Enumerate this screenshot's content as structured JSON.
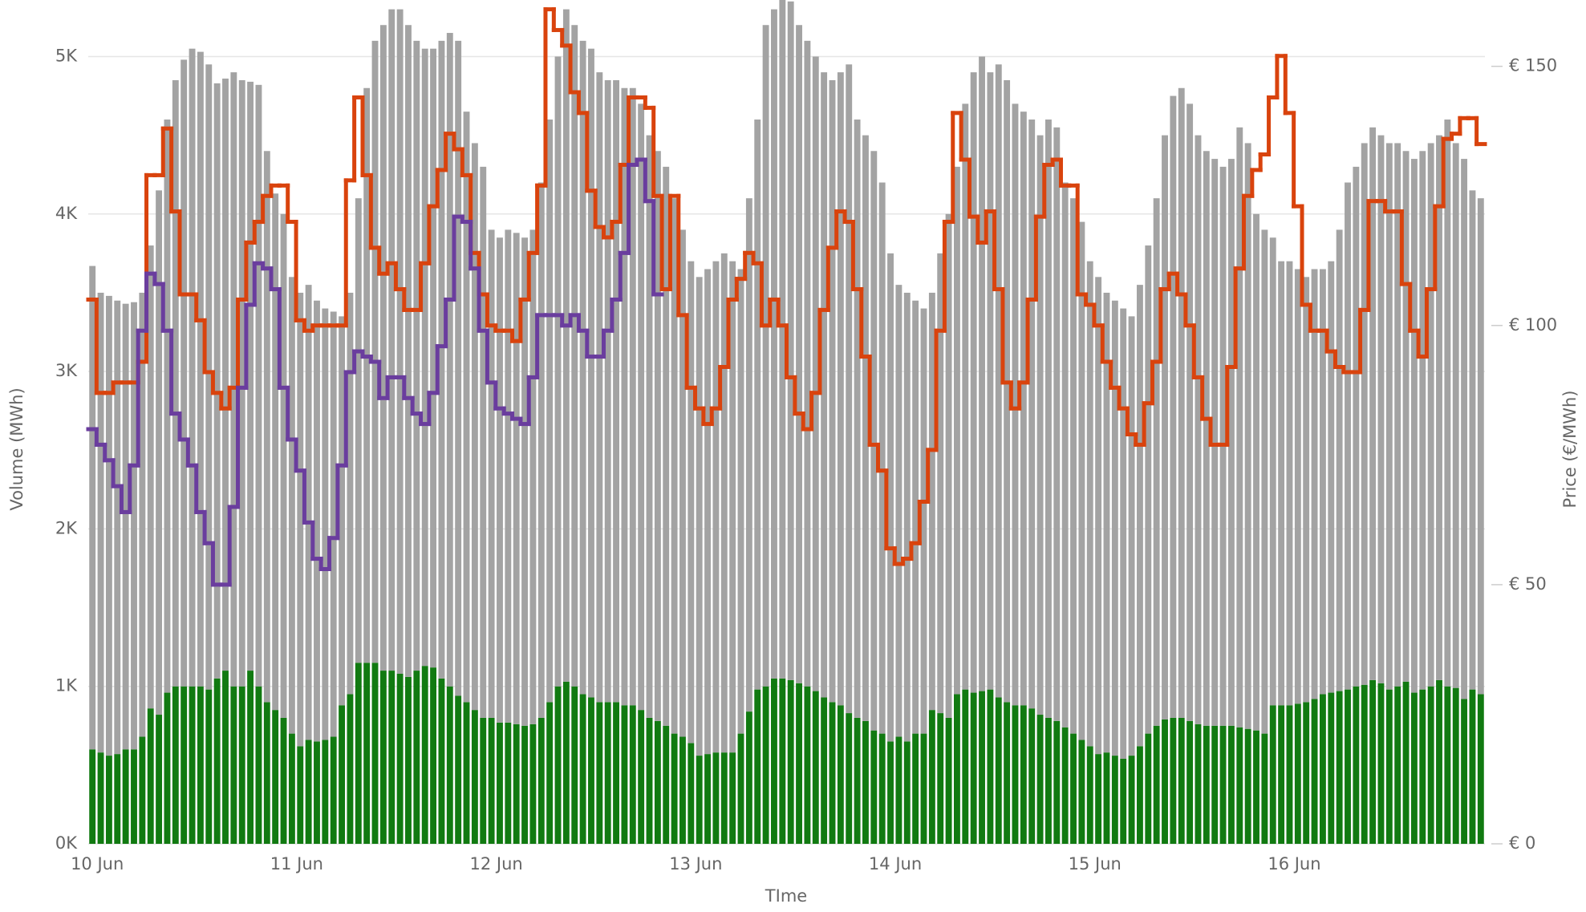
{
  "chart_data": {
    "type": "bar",
    "stacked": true,
    "step": true,
    "x_label": "TIme",
    "y_label": "Volume (MWh)",
    "y2_label": "Price (€/MWh)",
    "categories": [
      "10 Jun",
      null,
      null,
      null,
      null,
      null,
      null,
      null,
      null,
      null,
      null,
      null,
      null,
      null,
      null,
      null,
      null,
      null,
      null,
      null,
      null,
      null,
      null,
      null,
      "11 Jun",
      null,
      null,
      null,
      null,
      null,
      null,
      null,
      null,
      null,
      null,
      null,
      null,
      null,
      null,
      null,
      null,
      null,
      null,
      null,
      null,
      null,
      null,
      null,
      "12 Jun",
      null,
      null,
      null,
      null,
      null,
      null,
      null,
      null,
      null,
      null,
      null,
      null,
      null,
      null,
      null,
      null,
      null,
      null,
      null,
      null,
      null,
      null,
      null,
      "13 Jun",
      null,
      null,
      null,
      null,
      null,
      null,
      null,
      null,
      null,
      null,
      null,
      null,
      null,
      null,
      null,
      null,
      null,
      null,
      null,
      null,
      null,
      null,
      null,
      "14 Jun",
      null,
      null,
      null,
      null,
      null,
      null,
      null,
      null,
      null,
      null,
      null,
      null,
      null,
      null,
      null,
      null,
      null,
      null,
      null,
      null,
      null,
      null,
      null,
      "15 Jun",
      null,
      null,
      null,
      null,
      null,
      null,
      null,
      null,
      null,
      null,
      null,
      null,
      null,
      null,
      null,
      null,
      null,
      null,
      null,
      null,
      null,
      null,
      null,
      "16 Jun",
      null,
      null,
      null,
      null,
      null,
      null,
      null,
      null,
      null,
      null,
      null,
      null,
      null,
      null,
      null,
      null,
      null,
      null,
      null,
      null,
      null,
      null,
      null
    ],
    "ylim": [
      0,
      5300
    ],
    "yticks": [
      {
        "value": 0,
        "label": "0K"
      },
      {
        "value": 1000,
        "label": "1K"
      },
      {
        "value": 2000,
        "label": "2K"
      },
      {
        "value": 3000,
        "label": "3K"
      },
      {
        "value": 4000,
        "label": "4K"
      },
      {
        "value": 5000,
        "label": "5K"
      }
    ],
    "y2lim": [
      0,
      161
    ],
    "y2ticks": [
      {
        "value": 0,
        "label": "€ 0"
      },
      {
        "value": 50,
        "label": "€ 50"
      },
      {
        "value": 100,
        "label": "€ 100"
      },
      {
        "value": 150,
        "label": "€ 150"
      }
    ],
    "grid": true,
    "series": [
      {
        "type": "bar",
        "color": "#117a11",
        "values": [
          600,
          580,
          560,
          570,
          600,
          600,
          680,
          860,
          820,
          960,
          1000,
          1000,
          1000,
          1000,
          980,
          1050,
          1100,
          1000,
          1000,
          1100,
          1000,
          900,
          850,
          800,
          700,
          620,
          660,
          650,
          660,
          680,
          880,
          950,
          1150,
          1150,
          1150,
          1100,
          1100,
          1080,
          1060,
          1100,
          1130,
          1120,
          1050,
          1000,
          940,
          900,
          850,
          800,
          800,
          770,
          770,
          760,
          750,
          760,
          800,
          900,
          1000,
          1030,
          1000,
          950,
          930,
          900,
          900,
          900,
          880,
          880,
          850,
          800,
          780,
          750,
          700,
          680,
          640,
          560,
          570,
          580,
          580,
          580,
          700,
          840,
          980,
          1000,
          1050,
          1050,
          1040,
          1020,
          1000,
          970,
          930,
          900,
          880,
          830,
          800,
          780,
          720,
          700,
          650,
          680,
          650,
          700,
          700,
          850,
          830,
          800,
          950,
          980,
          960,
          970,
          980,
          930,
          900,
          880,
          880,
          860,
          820,
          800,
          780,
          740,
          700,
          660,
          620,
          570,
          580,
          560,
          540,
          560,
          620,
          700,
          750,
          790,
          800,
          800,
          780,
          760,
          750,
          750,
          750,
          750,
          740,
          730,
          720,
          700,
          880,
          880,
          880,
          890,
          900,
          920,
          950,
          960,
          970,
          980,
          1000,
          1010,
          1040,
          1020,
          980,
          1000,
          1030,
          960,
          980,
          1000,
          1040,
          1000,
          990,
          920,
          980,
          950
        ]
      },
      {
        "type": "bar",
        "color": "#a3a3a3",
        "values": [
          3070,
          2920,
          2920,
          2880,
          2830,
          2840,
          2820,
          2940,
          3330,
          3640,
          3850,
          3980,
          4050,
          4030,
          3970,
          3780,
          3760,
          3900,
          3850,
          3740,
          3820,
          3500,
          3280,
          3200,
          2900,
          2880,
          2890,
          2800,
          2740,
          2700,
          2470,
          2550,
          2950,
          3650,
          3950,
          4100,
          4200,
          4220,
          4140,
          4000,
          3920,
          3930,
          4050,
          4150,
          4160,
          3750,
          3600,
          3500,
          3100,
          3080,
          3130,
          3120,
          3100,
          3140,
          3400,
          3700,
          4000,
          4270,
          4200,
          4150,
          4120,
          4000,
          3950,
          3950,
          3920,
          3920,
          3850,
          3700,
          3620,
          3550,
          3400,
          3220,
          3060,
          3040,
          3080,
          3120,
          3170,
          3120,
          2950,
          3260,
          3620,
          4200,
          4250,
          4350,
          4310,
          4180,
          4100,
          4030,
          3970,
          3950,
          4020,
          4120,
          3800,
          3720,
          3680,
          3500,
          3100,
          2870,
          2850,
          2750,
          2700,
          2650,
          2920,
          3200,
          3350,
          3720,
          3940,
          4030,
          3920,
          4020,
          3950,
          3820,
          3770,
          3740,
          3680,
          3800,
          3770,
          3460,
          3400,
          3290,
          3080,
          3030,
          2920,
          2890,
          2860,
          2790,
          2930,
          3100,
          3350,
          3710,
          3950,
          4000,
          3920,
          3740,
          3650,
          3600,
          3550,
          3600,
          3810,
          3720,
          3280,
          3200,
          2970,
          2820,
          2820,
          2760,
          2700,
          2730,
          2700,
          2740,
          2930,
          3220,
          3300,
          3440,
          3510,
          3480,
          3470,
          3450,
          3370,
          3390,
          3420,
          3450,
          3460,
          3600,
          3460,
          3430,
          3170,
          3150
        ]
      },
      {
        "type": "line",
        "axis": "y2",
        "color": "#d9430d",
        "values": [
          105,
          87,
          87,
          89,
          89,
          89,
          93,
          129,
          129,
          138,
          122,
          106,
          106,
          101,
          91,
          87,
          84,
          88,
          105,
          116,
          120,
          125,
          127,
          127,
          120,
          101,
          99,
          100,
          100,
          100,
          100,
          128,
          144,
          129,
          115,
          110,
          112,
          107,
          103,
          103,
          112,
          123,
          130,
          137,
          134,
          129,
          114,
          106,
          100,
          99,
          99,
          97,
          105,
          114,
          127,
          161,
          157,
          154,
          145,
          141,
          126,
          119,
          117,
          120,
          131,
          144,
          144,
          142,
          125,
          107,
          125,
          102,
          88,
          84,
          81,
          84,
          92,
          105,
          109,
          114,
          112,
          100,
          105,
          100,
          90,
          83,
          80,
          87,
          103,
          115,
          122,
          120,
          107,
          94,
          77,
          72,
          57,
          54,
          55,
          58,
          66,
          76,
          99,
          120,
          141,
          132,
          121,
          116,
          122,
          107,
          89,
          84,
          89,
          105,
          121,
          131,
          132,
          127,
          127,
          106,
          104,
          100,
          93,
          88,
          84,
          79,
          77,
          85,
          93,
          107,
          110,
          106,
          100,
          90,
          82,
          77,
          77,
          92,
          111,
          125,
          130,
          133,
          144,
          152,
          141,
          123,
          104,
          99,
          99,
          95,
          92,
          91,
          91,
          103,
          124,
          124,
          122,
          122,
          108,
          99,
          94,
          107,
          123,
          136,
          137,
          140,
          140,
          135
        ]
      },
      {
        "type": "line",
        "axis": "y2",
        "color": "#6a3d9e",
        "values": [
          80,
          77,
          74,
          69,
          64,
          73,
          99,
          110,
          108,
          99,
          83,
          78,
          73,
          64,
          58,
          50,
          50,
          65,
          88,
          104,
          112,
          111,
          107,
          88,
          78,
          72,
          62,
          55,
          53,
          59,
          73,
          91,
          95,
          94,
          93,
          86,
          90,
          90,
          86,
          83,
          81,
          87,
          96,
          105,
          121,
          120,
          111,
          99,
          89,
          84,
          83,
          82,
          81,
          90,
          102,
          102,
          102,
          100,
          102,
          99,
          94,
          94,
          99,
          105,
          114,
          131,
          132,
          124,
          106,
          null,
          null,
          null,
          null,
          null,
          null,
          null,
          null,
          null,
          null,
          null,
          null,
          null,
          null,
          null,
          null,
          null,
          null,
          null,
          null,
          null,
          null,
          null,
          null,
          null,
          null,
          null,
          null,
          null,
          null,
          null,
          null,
          null,
          null,
          null,
          null,
          null,
          null,
          null,
          null,
          null,
          null,
          null,
          null,
          null,
          null,
          null,
          null,
          null,
          null,
          null,
          null,
          null,
          null,
          null,
          null,
          null,
          null,
          null,
          null,
          null,
          null,
          null,
          null,
          null,
          null,
          null,
          null,
          null,
          null,
          null,
          null,
          null,
          null,
          null,
          null,
          null,
          null,
          null,
          null,
          null,
          null,
          null,
          null,
          null,
          null,
          null,
          null,
          null,
          null,
          null,
          null,
          null,
          null,
          null,
          null,
          null,
          null,
          null
        ]
      }
    ]
  }
}
